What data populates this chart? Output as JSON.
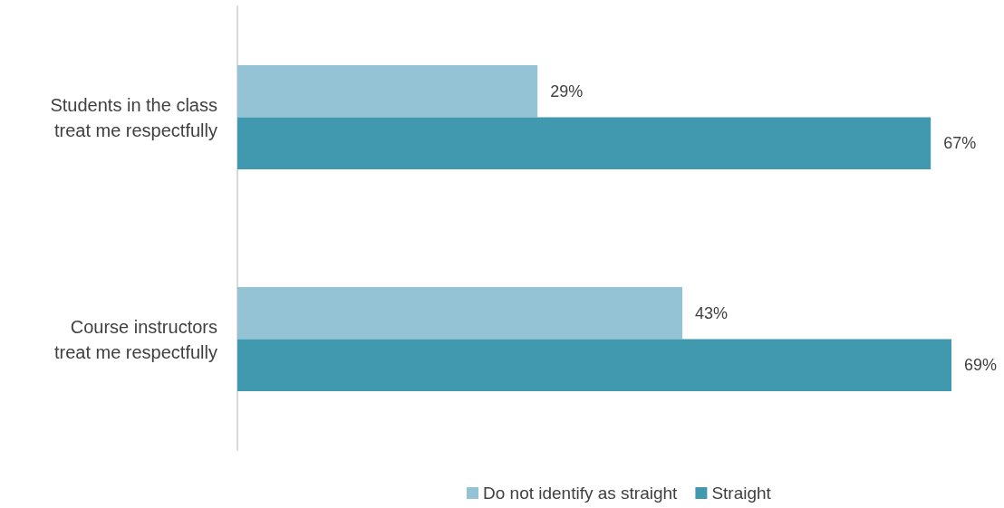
{
  "chart_data": {
    "type": "bar",
    "orientation": "horizontal",
    "categories": [
      "Students in the class\ntreat me respectfully",
      "Course instructors\ntreat me respectfully"
    ],
    "series": [
      {
        "name": "Do not identify as straight",
        "color": "#93c3d4",
        "values": [
          29,
          43
        ],
        "value_labels": [
          "29%",
          "43%"
        ]
      },
      {
        "name": "Straight",
        "color": "#4199b0",
        "values": [
          67,
          69
        ],
        "value_labels": [
          "67%",
          "69%"
        ]
      }
    ],
    "legend": "bottom",
    "grid": false
  }
}
